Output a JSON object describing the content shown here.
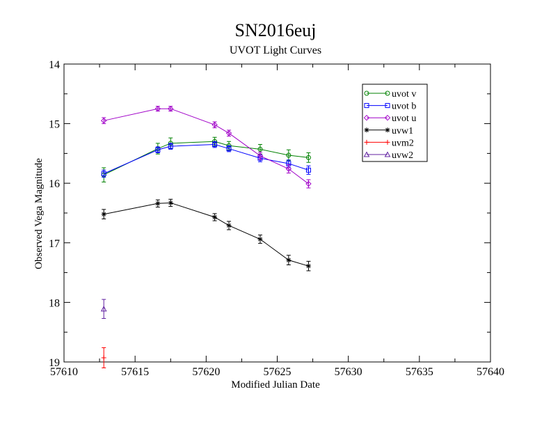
{
  "chart_data": {
    "type": "line",
    "title": "SN2016euj",
    "subtitle": "UVOT Light Curves",
    "xlabel": "Modified Julian Date",
    "ylabel": "Observed Vega Magnitude",
    "xlim": [
      57610,
      57640
    ],
    "ylim": [
      19,
      14
    ],
    "y_inverted": true,
    "xticks": [
      57610,
      57615,
      57620,
      57625,
      57630,
      57635,
      57640
    ],
    "yticks": [
      14,
      15,
      16,
      17,
      18,
      19
    ],
    "grid": false,
    "legend_position": "top-right",
    "series": [
      {
        "name": "uvot v",
        "color": "#008000",
        "marker": "circle",
        "points": [
          {
            "x": 57612.8,
            "y": 15.86,
            "err": 0.12
          },
          {
            "x": 57616.6,
            "y": 15.42,
            "err": 0.09
          },
          {
            "x": 57617.5,
            "y": 15.33,
            "err": 0.09
          },
          {
            "x": 57620.6,
            "y": 15.3,
            "err": 0.07
          },
          {
            "x": 57621.6,
            "y": 15.37,
            "err": 0.07
          },
          {
            "x": 57623.8,
            "y": 15.43,
            "err": 0.08
          },
          {
            "x": 57625.8,
            "y": 15.53,
            "err": 0.09
          },
          {
            "x": 57627.2,
            "y": 15.57,
            "err": 0.08
          }
        ]
      },
      {
        "name": "uvot b",
        "color": "#0000ff",
        "marker": "square",
        "points": [
          {
            "x": 57612.8,
            "y": 15.84,
            "err": 0.06
          },
          {
            "x": 57616.6,
            "y": 15.44,
            "err": 0.05
          },
          {
            "x": 57617.5,
            "y": 15.38,
            "err": 0.05
          },
          {
            "x": 57620.6,
            "y": 15.35,
            "err": 0.05
          },
          {
            "x": 57621.6,
            "y": 15.42,
            "err": 0.05
          },
          {
            "x": 57623.8,
            "y": 15.58,
            "err": 0.06
          },
          {
            "x": 57625.8,
            "y": 15.67,
            "err": 0.06
          },
          {
            "x": 57627.2,
            "y": 15.78,
            "err": 0.07
          }
        ]
      },
      {
        "name": "uvot u",
        "color": "#a000c8",
        "marker": "diamond",
        "points": [
          {
            "x": 57612.8,
            "y": 14.95,
            "err": 0.05
          },
          {
            "x": 57616.6,
            "y": 14.75,
            "err": 0.04
          },
          {
            "x": 57617.5,
            "y": 14.75,
            "err": 0.04
          },
          {
            "x": 57620.6,
            "y": 15.02,
            "err": 0.05
          },
          {
            "x": 57621.6,
            "y": 15.16,
            "err": 0.05
          },
          {
            "x": 57623.8,
            "y": 15.54,
            "err": 0.06
          },
          {
            "x": 57625.8,
            "y": 15.76,
            "err": 0.07
          },
          {
            "x": 57627.2,
            "y": 16.01,
            "err": 0.07
          }
        ]
      },
      {
        "name": "uvw1",
        "color": "#000000",
        "marker": "star",
        "points": [
          {
            "x": 57612.8,
            "y": 16.52,
            "err": 0.08
          },
          {
            "x": 57616.6,
            "y": 16.34,
            "err": 0.06
          },
          {
            "x": 57617.5,
            "y": 16.33,
            "err": 0.06
          },
          {
            "x": 57620.6,
            "y": 16.57,
            "err": 0.06
          },
          {
            "x": 57621.6,
            "y": 16.71,
            "err": 0.07
          },
          {
            "x": 57623.8,
            "y": 16.94,
            "err": 0.07
          },
          {
            "x": 57625.8,
            "y": 17.29,
            "err": 0.08
          },
          {
            "x": 57627.2,
            "y": 17.39,
            "err": 0.08
          }
        ]
      },
      {
        "name": "uvm2",
        "color": "#ff0000",
        "marker": "plus",
        "points": [
          {
            "x": 57612.8,
            "y": 18.93,
            "err": 0.17
          }
        ]
      },
      {
        "name": "uvw2",
        "color": "#6020a0",
        "marker": "triangle",
        "points": [
          {
            "x": 57612.8,
            "y": 18.11,
            "err": 0.16
          }
        ]
      }
    ]
  }
}
